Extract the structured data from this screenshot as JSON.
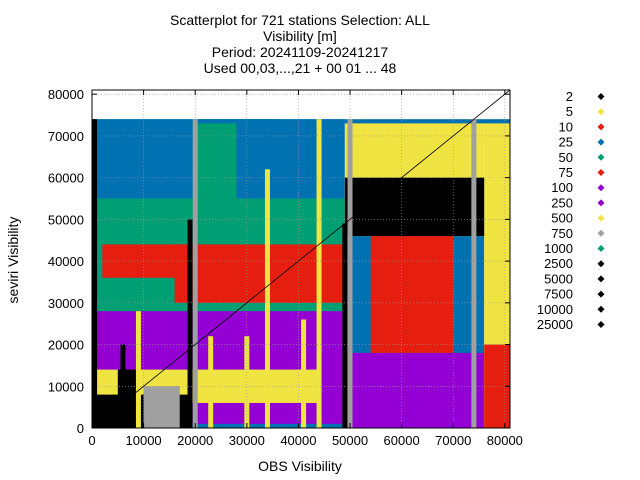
{
  "chart_data": {
    "type": "scatter",
    "title_lines": [
      "Scatterplot for  721 stations Selection: ALL",
      "Visibility [m]",
      "Period: 20241109-20241217",
      "Used 00,03,...,21 + 00 01 ... 48"
    ],
    "xlabel": "OBS Visibility",
    "ylabel": "seviri Visibility",
    "xlim": [
      0,
      81000
    ],
    "ylim": [
      0,
      81000
    ],
    "x_ticks": [
      "0",
      "10000",
      "20000",
      "30000",
      "40000",
      "50000",
      "60000",
      "70000",
      "80000"
    ],
    "y_ticks": [
      "0",
      "10000",
      "20000",
      "30000",
      "40000",
      "50000",
      "60000",
      "70000",
      "80000"
    ],
    "grid": true,
    "diagonal_reference_line": true,
    "legend_placement": "outside-right",
    "series": [
      {
        "name": "2",
        "color": "#000000"
      },
      {
        "name": "5",
        "color": "#f0e442"
      },
      {
        "name": "10",
        "color": "#e51e10"
      },
      {
        "name": "25",
        "color": "#0072b2"
      },
      {
        "name": "50",
        "color": "#009e73"
      },
      {
        "name": "75",
        "color": "#e51e10"
      },
      {
        "name": "100",
        "color": "#9400d3"
      },
      {
        "name": "250",
        "color": "#9400d3"
      },
      {
        "name": "500",
        "color": "#f0e442"
      },
      {
        "name": "750",
        "color": "#a0a0a0"
      },
      {
        "name": "1000",
        "color": "#009e73"
      },
      {
        "name": "2500",
        "color": "#000000"
      },
      {
        "name": "5000",
        "color": "#000000"
      },
      {
        "name": "7500",
        "color": "#000000"
      },
      {
        "name": "10000",
        "color": "#000000"
      },
      {
        "name": "25000",
        "color": "#000000"
      }
    ],
    "regions": [
      {
        "x": [
          0,
          49000
        ],
        "y": [
          0,
          74000
        ],
        "color": "#0072b2"
      },
      {
        "x": [
          0,
          49000
        ],
        "y": [
          15000,
          55000
        ],
        "color": "#009e73"
      },
      {
        "x": [
          0,
          49000
        ],
        "y": [
          1000,
          28000
        ],
        "color": "#9400d3"
      },
      {
        "x": [
          49000,
          76000
        ],
        "y": [
          0,
          46000
        ],
        "color": "#0072b2"
      },
      {
        "x": [
          49000,
          76000
        ],
        "y": [
          0,
          18000
        ],
        "color": "#9400d3"
      },
      {
        "x": [
          49000,
          76000
        ],
        "y": [
          46000,
          74000
        ],
        "color": "#f0e442"
      },
      {
        "x": [
          76000,
          81000
        ],
        "y": [
          0,
          74000
        ],
        "color": "#f0e442"
      },
      {
        "x": [
          0,
          19000
        ],
        "y": [
          0,
          22000
        ],
        "color": "#9400d3"
      },
      {
        "x": [
          0,
          44000
        ],
        "y": [
          6000,
          14000
        ],
        "color": "#f0e442"
      },
      {
        "x": [
          0,
          19000
        ],
        "y": [
          0,
          8000
        ],
        "color": "#000000"
      },
      {
        "x": [
          5000,
          9000
        ],
        "y": [
          3000,
          14000
        ],
        "color": "#000000"
      },
      {
        "x": [
          10000,
          17000
        ],
        "y": [
          0,
          10000
        ],
        "color": "#a0a0a0"
      },
      {
        "x": [
          20000,
          30000
        ],
        "y": [
          36000,
          74000
        ],
        "color": "#009e73"
      },
      {
        "x": [
          28000,
          36000
        ],
        "y": [
          55000,
          74000
        ],
        "color": "#0072b2"
      },
      {
        "x": [
          16000,
          49000
        ],
        "y": [
          30000,
          44000
        ],
        "color": "#e51e10"
      },
      {
        "x": [
          2000,
          19000
        ],
        "y": [
          36000,
          44000
        ],
        "color": "#e51e10"
      },
      {
        "x": [
          54000,
          70000
        ],
        "y": [
          18000,
          46000
        ],
        "color": "#e51e10"
      },
      {
        "x": [
          49000,
          76000
        ],
        "y": [
          46000,
          60000
        ],
        "color": "#000000"
      },
      {
        "x": [
          76000,
          81000
        ],
        "y": [
          0,
          20000
        ],
        "color": "#e51e10"
      },
      {
        "x": [
          0,
          81000
        ],
        "y": [
          73000,
          74000
        ],
        "color": "#0072b2"
      }
    ],
    "columns": [
      {
        "x": 500,
        "y": [
          0,
          74000
        ],
        "color": "#000000"
      },
      {
        "x": 6000,
        "y": [
          0,
          20000
        ],
        "color": "#000000"
      },
      {
        "x": 9000,
        "y": [
          0,
          28000
        ],
        "color": "#f0e442"
      },
      {
        "x": 19000,
        "y": [
          0,
          50000
        ],
        "color": "#000000"
      },
      {
        "x": 20000,
        "y": [
          0,
          74000
        ],
        "color": "#a0a0a0"
      },
      {
        "x": 23000,
        "y": [
          0,
          22000
        ],
        "color": "#f0e442"
      },
      {
        "x": 30000,
        "y": [
          0,
          22000
        ],
        "color": "#f0e442"
      },
      {
        "x": 34000,
        "y": [
          0,
          62000
        ],
        "color": "#f0e442"
      },
      {
        "x": 41000,
        "y": [
          0,
          26000
        ],
        "color": "#f0e442"
      },
      {
        "x": 44000,
        "y": [
          0,
          74000
        ],
        "color": "#f0e442"
      },
      {
        "x": 49000,
        "y": [
          0,
          49000
        ],
        "color": "#000000"
      },
      {
        "x": 50000,
        "y": [
          0,
          74000
        ],
        "color": "#a0a0a0"
      },
      {
        "x": 74000,
        "y": [
          0,
          74000
        ],
        "color": "#a0a0a0"
      }
    ]
  }
}
